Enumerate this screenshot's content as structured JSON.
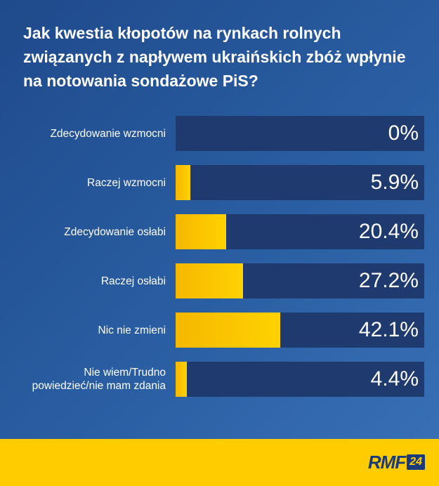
{
  "title": "Jak kwestia kłopotów na rynkach rolnych związanych z napływem ukraińskich zbóż wpłynie na notowania sondażowe PiS?",
  "chart_data": {
    "type": "bar",
    "orientation": "horizontal",
    "title": "Jak kwestia kłopotów na rynkach rolnych związanych z napływem ukraińskich zbóż wpłynie na notowania sondażowe PiS?",
    "categories": [
      "Zdecydowanie wzmocni",
      "Raczej wzmocni",
      "Zdecydowanie osłabi",
      "Raczej osłabi",
      "Nic nie zmieni",
      "Nie wiem/Trudno powiedzieć/nie mam zdania"
    ],
    "values": [
      0,
      5.9,
      20.4,
      27.2,
      42.1,
      4.4
    ],
    "value_labels": [
      "0%",
      "5.9%",
      "20.4%",
      "27.2%",
      "42.1%",
      "4.4%"
    ],
    "xlim": [
      0,
      100
    ],
    "unit": "%"
  },
  "colors": {
    "background": "#2a5ea3",
    "track": "#1f3a6e",
    "bar": "#ffcc00",
    "footer": "#ffcc00",
    "text": "#ffffff"
  },
  "footer": {
    "logo_text": "RMF",
    "logo_badge": "24"
  }
}
